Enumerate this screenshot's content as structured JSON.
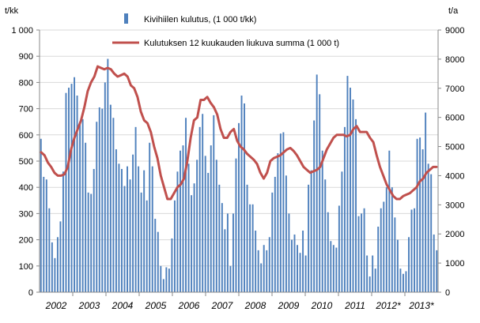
{
  "chart_data": {
    "type": "bar+line",
    "left_axis_unit": "t/kk",
    "right_axis_unit": "t/a",
    "left_ticks": [
      "0",
      "100",
      "200",
      "300",
      "400",
      "500",
      "600",
      "700",
      "800",
      "900",
      "1 000"
    ],
    "right_ticks": [
      "0",
      "1000",
      "2000",
      "3000",
      "4000",
      "5000",
      "6000",
      "7000",
      "8000",
      "9000"
    ],
    "ylim_left": [
      0,
      1000
    ],
    "ylim_right": [
      0,
      9000
    ],
    "year_labels": [
      "2002",
      "2003",
      "2004",
      "2005",
      "2006",
      "2007",
      "2008",
      "2009",
      "2010",
      "2011",
      "2012*",
      "2013*"
    ],
    "grid": true,
    "legend_position": "top-center",
    "series": [
      {
        "name": "Kivihiilen kulutus, (1 000 t/kk)",
        "axis": "left",
        "color": "#4f81bd",
        "values": [
          585,
          440,
          430,
          320,
          190,
          130,
          210,
          270,
          460,
          760,
          780,
          795,
          820,
          750,
          650,
          660,
          570,
          380,
          375,
          470,
          650,
          705,
          700,
          800,
          890,
          715,
          665,
          545,
          490,
          470,
          405,
          480,
          430,
          525,
          630,
          480,
          380,
          465,
          350,
          570,
          480,
          280,
          230,
          100,
          50,
          95,
          90,
          205,
          350,
          460,
          540,
          560,
          665,
          490,
          370,
          415,
          505,
          630,
          680,
          520,
          455,
          560,
          675,
          505,
          410,
          340,
          240,
          300,
          100,
          300,
          510,
          645,
          750,
          720,
          410,
          335,
          335,
          235,
          160,
          110,
          180,
          160,
          210,
          380,
          440,
          530,
          605,
          610,
          445,
          300,
          200,
          220,
          180,
          150,
          235,
          140,
          410,
          465,
          655,
          830,
          755,
          540,
          430,
          305,
          195,
          180,
          170,
          330,
          460,
          630,
          825,
          780,
          735,
          660,
          290,
          300,
          320,
          140,
          60,
          140,
          90,
          250,
          320,
          345,
          400,
          540,
          400,
          285,
          200,
          90,
          70,
          80,
          210,
          315,
          320,
          585,
          590,
          545,
          685,
          490,
          450,
          220,
          160
        ]
      },
      {
        "name": "Kulutuksen 12 kuukauden liukuva summa (1 000 t)",
        "axis": "right",
        "color": "#c0504d",
        "values": [
          4800,
          4700,
          4450,
          4300,
          4100,
          4000,
          4000,
          4050,
          4300,
          4900,
          5300,
          5600,
          5900,
          6350,
          6900,
          7200,
          7400,
          7750,
          7700,
          7650,
          7700,
          7650,
          7500,
          7400,
          7450,
          7500,
          7400,
          7100,
          7000,
          6700,
          6200,
          5900,
          5800,
          5500,
          5000,
          4600,
          4000,
          3600,
          3200,
          3200,
          3400,
          3600,
          3700,
          3900,
          4500,
          5300,
          5900,
          6000,
          6600,
          6600,
          6700,
          6500,
          6350,
          6100,
          5600,
          5300,
          5300,
          5500,
          5600,
          5200,
          5000,
          4900,
          4750,
          4650,
          4550,
          4400,
          4100,
          3900,
          4100,
          4500,
          4600,
          4650,
          4700,
          4800,
          4900,
          4950,
          4850,
          4700,
          4500,
          4300,
          4200,
          4100,
          4150,
          4200,
          4300,
          4600,
          4900,
          5100,
          5300,
          5400,
          5400,
          5400,
          5350,
          5400,
          5600,
          5700,
          5500,
          5500,
          5500,
          5300,
          5150,
          4700,
          4300,
          4000,
          3700,
          3500,
          3300,
          3200,
          3200,
          3300,
          3350,
          3400,
          3500,
          3600,
          3800,
          3900,
          4100,
          4200,
          4300,
          4300
        ]
      }
    ]
  }
}
